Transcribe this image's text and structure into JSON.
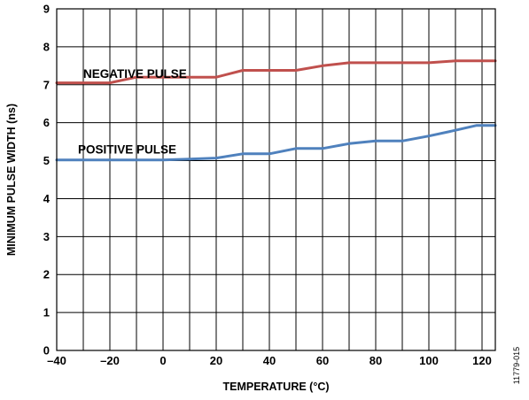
{
  "chart_data": {
    "type": "line",
    "xlabel": "TEMPERATURE (°C)",
    "ylabel": "MINIMUM PULSE WIDTH (ns)",
    "xlim": [
      -40,
      125
    ],
    "ylim": [
      0,
      9
    ],
    "x_ticks": [
      "–40",
      "–20",
      "0",
      "20",
      "40",
      "60",
      "80",
      "100",
      "120"
    ],
    "y_ticks": [
      "0",
      "1",
      "2",
      "3",
      "4",
      "5",
      "6",
      "7",
      "8",
      "9"
    ],
    "grid": true,
    "series": [
      {
        "name": "NEGATIVE PULSE",
        "color": "#c0504d",
        "x": [
          -40,
          -20,
          -10,
          20,
          30,
          50,
          60,
          70,
          100,
          110,
          125
        ],
        "y": [
          7.05,
          7.05,
          7.2,
          7.2,
          7.38,
          7.38,
          7.5,
          7.58,
          7.58,
          7.63,
          7.63
        ]
      },
      {
        "name": "POSITIVE PULSE",
        "color": "#4f81bd",
        "x": [
          -40,
          0,
          10,
          20,
          30,
          40,
          50,
          60,
          70,
          80,
          90,
          100,
          110,
          118,
          125
        ],
        "y": [
          5.02,
          5.02,
          5.04,
          5.07,
          5.18,
          5.18,
          5.32,
          5.32,
          5.45,
          5.52,
          5.52,
          5.65,
          5.8,
          5.93,
          5.93
        ]
      }
    ]
  },
  "figure_id": "11779-015"
}
